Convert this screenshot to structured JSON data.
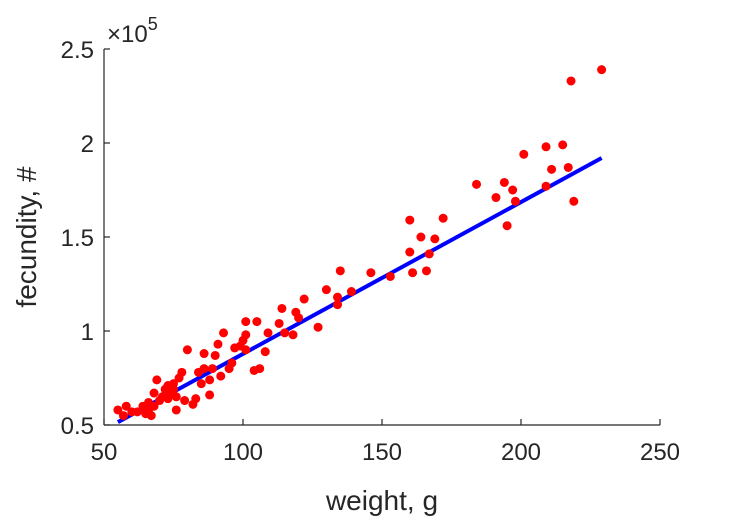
{
  "chart_data": {
    "type": "scatter",
    "xlabel": "weight, g",
    "ylabel": "fecundity, #",
    "xlim": [
      50,
      250
    ],
    "ylim": [
      0.5,
      2.5
    ],
    "y_multiplier_label": "×10",
    "y_multiplier_exponent": "5",
    "x_ticks": [
      "50",
      "100",
      "150",
      "200",
      "250"
    ],
    "y_ticks": [
      "0.5",
      "1",
      "1.5",
      "2",
      "2.5"
    ],
    "x_tick_values": [
      50,
      100,
      150,
      200,
      250
    ],
    "y_tick_values": [
      0.5,
      1,
      1.5,
      2,
      2.5
    ],
    "grid": false,
    "legend": "none",
    "point_color": "#ff0000",
    "line_color": "#0000ff",
    "fit_line": {
      "x": [
        55,
        229
      ],
      "y": [
        0.515,
        1.92
      ]
    },
    "points": [
      {
        "x": 55,
        "y": 0.58
      },
      {
        "x": 57,
        "y": 0.55
      },
      {
        "x": 58,
        "y": 0.6
      },
      {
        "x": 60,
        "y": 0.57
      },
      {
        "x": 62,
        "y": 0.57
      },
      {
        "x": 64,
        "y": 0.6
      },
      {
        "x": 65,
        "y": 0.56
      },
      {
        "x": 66,
        "y": 0.58
      },
      {
        "x": 66,
        "y": 0.62
      },
      {
        "x": 67,
        "y": 0.55
      },
      {
        "x": 68,
        "y": 0.6
      },
      {
        "x": 68,
        "y": 0.67
      },
      {
        "x": 69,
        "y": 0.74
      },
      {
        "x": 70,
        "y": 0.63
      },
      {
        "x": 71,
        "y": 0.65
      },
      {
        "x": 72,
        "y": 0.69
      },
      {
        "x": 73,
        "y": 0.71
      },
      {
        "x": 73,
        "y": 0.64
      },
      {
        "x": 74,
        "y": 0.67
      },
      {
        "x": 75,
        "y": 0.72
      },
      {
        "x": 75,
        "y": 0.69
      },
      {
        "x": 76,
        "y": 0.65
      },
      {
        "x": 76,
        "y": 0.58
      },
      {
        "x": 77,
        "y": 0.75
      },
      {
        "x": 78,
        "y": 0.78
      },
      {
        "x": 79,
        "y": 0.63
      },
      {
        "x": 80,
        "y": 0.9
      },
      {
        "x": 82,
        "y": 0.61
      },
      {
        "x": 83,
        "y": 0.64
      },
      {
        "x": 84,
        "y": 0.78
      },
      {
        "x": 85,
        "y": 0.72
      },
      {
        "x": 86,
        "y": 0.8
      },
      {
        "x": 86,
        "y": 0.88
      },
      {
        "x": 88,
        "y": 0.66
      },
      {
        "x": 88,
        "y": 0.74
      },
      {
        "x": 89,
        "y": 0.8
      },
      {
        "x": 90,
        "y": 0.87
      },
      {
        "x": 91,
        "y": 0.93
      },
      {
        "x": 92,
        "y": 0.76
      },
      {
        "x": 93,
        "y": 0.99
      },
      {
        "x": 95,
        "y": 0.8
      },
      {
        "x": 96,
        "y": 0.83
      },
      {
        "x": 97,
        "y": 0.91
      },
      {
        "x": 99,
        "y": 0.92
      },
      {
        "x": 100,
        "y": 0.95
      },
      {
        "x": 101,
        "y": 0.9
      },
      {
        "x": 101,
        "y": 0.98
      },
      {
        "x": 101,
        "y": 1.05
      },
      {
        "x": 104,
        "y": 0.79
      },
      {
        "x": 105,
        "y": 1.05
      },
      {
        "x": 106,
        "y": 0.8
      },
      {
        "x": 108,
        "y": 0.89
      },
      {
        "x": 109,
        "y": 0.99
      },
      {
        "x": 113,
        "y": 1.04
      },
      {
        "x": 114,
        "y": 1.12
      },
      {
        "x": 115,
        "y": 0.99
      },
      {
        "x": 118,
        "y": 0.98
      },
      {
        "x": 119,
        "y": 1.1
      },
      {
        "x": 120,
        "y": 1.07
      },
      {
        "x": 122,
        "y": 1.17
      },
      {
        "x": 127,
        "y": 1.02
      },
      {
        "x": 130,
        "y": 1.22
      },
      {
        "x": 134,
        "y": 1.14
      },
      {
        "x": 134,
        "y": 1.18
      },
      {
        "x": 135,
        "y": 1.32
      },
      {
        "x": 139,
        "y": 1.21
      },
      {
        "x": 146,
        "y": 1.31
      },
      {
        "x": 153,
        "y": 1.29
      },
      {
        "x": 160,
        "y": 1.59
      },
      {
        "x": 160,
        "y": 1.42
      },
      {
        "x": 161,
        "y": 1.31
      },
      {
        "x": 164,
        "y": 1.5
      },
      {
        "x": 166,
        "y": 1.32
      },
      {
        "x": 167,
        "y": 1.41
      },
      {
        "x": 169,
        "y": 1.49
      },
      {
        "x": 172,
        "y": 1.6
      },
      {
        "x": 184,
        "y": 1.78
      },
      {
        "x": 191,
        "y": 1.71
      },
      {
        "x": 194,
        "y": 1.79
      },
      {
        "x": 195,
        "y": 1.56
      },
      {
        "x": 197,
        "y": 1.75
      },
      {
        "x": 198,
        "y": 1.69
      },
      {
        "x": 201,
        "y": 1.94
      },
      {
        "x": 209,
        "y": 1.77
      },
      {
        "x": 209,
        "y": 1.98
      },
      {
        "x": 211,
        "y": 1.86
      },
      {
        "x": 215,
        "y": 1.99
      },
      {
        "x": 217,
        "y": 1.87
      },
      {
        "x": 218,
        "y": 2.33
      },
      {
        "x": 219,
        "y": 1.69
      },
      {
        "x": 229,
        "y": 2.39
      }
    ]
  }
}
